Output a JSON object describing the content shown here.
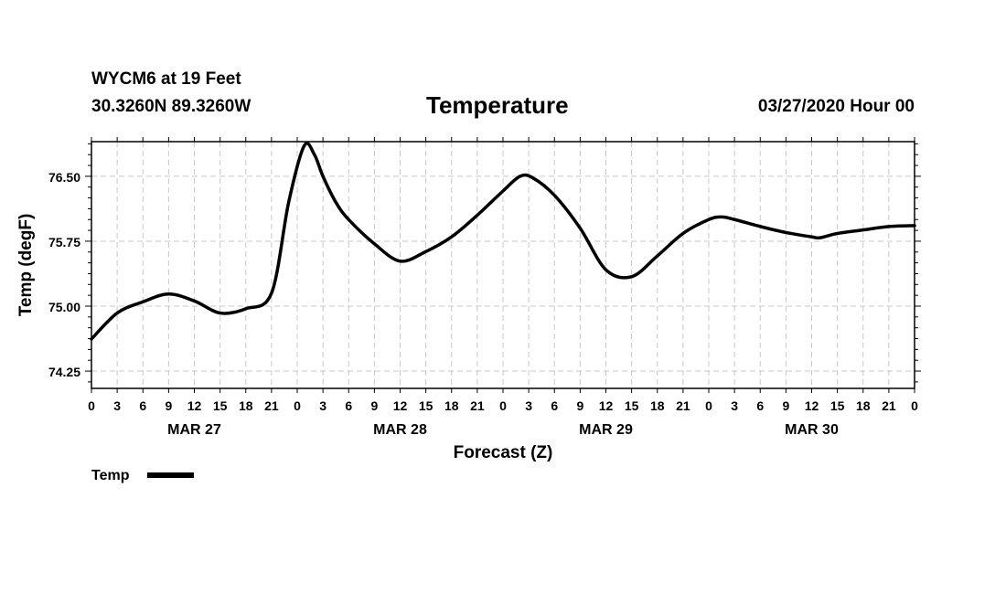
{
  "header": {
    "station": "WYCM6 at 19 Feet",
    "coords": "30.3260N 89.3260W",
    "title": "Temperature",
    "datetime": "03/27/2020 Hour 00"
  },
  "chart_data": {
    "type": "line",
    "title": "Temperature",
    "xlabel": "Forecast (Z)",
    "ylabel": "Temp (degF)",
    "x_range_hours": [
      0,
      96
    ],
    "ylim": [
      74.05,
      76.9
    ],
    "y_ticks": [
      74.25,
      75.0,
      75.75,
      76.5
    ],
    "y_tick_labels": [
      "74.25",
      "75.00",
      "75.75",
      "76.50"
    ],
    "x_tick_step_hours": 3,
    "x_tick_labels": [
      "0",
      "3",
      "6",
      "9",
      "12",
      "15",
      "18",
      "21",
      "0",
      "3",
      "6",
      "9",
      "12",
      "15",
      "18",
      "21",
      "0",
      "3",
      "6",
      "9",
      "12",
      "15",
      "18",
      "21",
      "0",
      "3",
      "6",
      "9",
      "12",
      "15",
      "18",
      "21",
      "0"
    ],
    "day_labels": [
      {
        "hour": 12,
        "label": "MAR 27"
      },
      {
        "hour": 36,
        "label": "MAR 28"
      },
      {
        "hour": 60,
        "label": "MAR 29"
      },
      {
        "hour": 84,
        "label": "MAR 30"
      }
    ],
    "grid": true,
    "legend": {
      "position": "bottom-left",
      "entries": [
        "Temp"
      ]
    },
    "series": [
      {
        "name": "Temp",
        "color": "#000000",
        "x": [
          0,
          3,
          6,
          9,
          12,
          15,
          18,
          21,
          23,
          24.8,
          26,
          27,
          28.5,
          30,
          33,
          36,
          39,
          42,
          45,
          48,
          50,
          51.5,
          54,
          57,
          60,
          63,
          66,
          69,
          72,
          73.5,
          75,
          78,
          81,
          84,
          85,
          87,
          90,
          93,
          96
        ],
        "y": [
          74.62,
          74.92,
          75.05,
          75.14,
          75.06,
          74.92,
          74.97,
          75.15,
          76.2,
          76.85,
          76.75,
          76.5,
          76.2,
          76.0,
          75.72,
          75.52,
          75.63,
          75.8,
          76.05,
          76.33,
          76.5,
          76.48,
          76.28,
          75.9,
          75.42,
          75.34,
          75.58,
          75.84,
          76.0,
          76.03,
          76.0,
          75.92,
          75.85,
          75.8,
          75.79,
          75.84,
          75.88,
          75.92,
          75.93
        ]
      }
    ]
  }
}
